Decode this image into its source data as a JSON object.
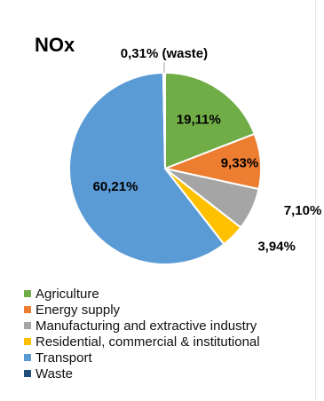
{
  "chart_data": {
    "type": "pie",
    "title": "NOx",
    "slices": [
      {
        "name": "Agriculture",
        "value": 19.11,
        "label": "19,11%",
        "color": "#70ad47"
      },
      {
        "name": "Energy supply",
        "value": 9.33,
        "label": "9,33%",
        "color": "#ed7d31"
      },
      {
        "name": "Manufacturing and extractive industry",
        "value": 7.1,
        "label": "7,10%",
        "color": "#a5a5a5"
      },
      {
        "name": "Residential, commercial & institutional",
        "value": 3.94,
        "label": "3,94%",
        "color": "#ffc000"
      },
      {
        "name": "Transport",
        "value": 60.21,
        "label": "60,21%",
        "color": "#5b9bd5"
      },
      {
        "name": "Waste",
        "value": 0.31,
        "label": "0,31% (waste)",
        "color": "#1f4e79"
      }
    ],
    "legend_position": "bottom-left"
  }
}
